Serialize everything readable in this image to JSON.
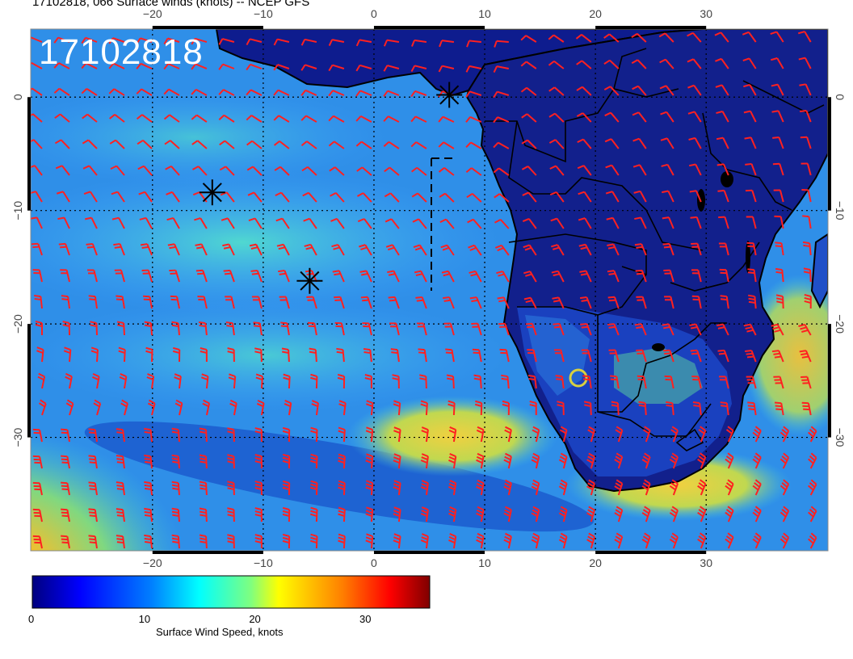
{
  "header": {
    "title": "17102818, 066 Surface winds (knots) -- NCEP GFS",
    "timestamp_stamp": "17102818"
  },
  "map": {
    "lon_range": [
      -31,
      41
    ],
    "lat_range": [
      -40,
      6
    ],
    "lon_ticks": [
      {
        "value": -20,
        "label": "−20"
      },
      {
        "value": -10,
        "label": "−10"
      },
      {
        "value": 0,
        "label": "0"
      },
      {
        "value": 10,
        "label": "10"
      },
      {
        "value": 20,
        "label": "20"
      },
      {
        "value": 30,
        "label": "30"
      }
    ],
    "lat_ticks": [
      {
        "value": 0,
        "label": "0"
      },
      {
        "value": -10,
        "label": "−10"
      },
      {
        "value": -20,
        "label": "−20"
      },
      {
        "value": -30,
        "label": "−30"
      }
    ],
    "gridlines": true,
    "markers": [
      {
        "name": "storm-marker-1",
        "lon": -14.6,
        "lat": -8.4
      },
      {
        "name": "storm-marker-2",
        "lon": -5.8,
        "lat": -16.2
      },
      {
        "name": "storm-marker-3",
        "lon": 6.8,
        "lat": 0.2
      }
    ],
    "barb_color": "#ff2020",
    "land_color": "#101a8a",
    "ocean_color": "#3f9fff"
  },
  "colorbar": {
    "label": "Surface Wind Speed, knots",
    "ticks": [
      {
        "value": 0,
        "label": "0"
      },
      {
        "value": 10,
        "label": "10"
      },
      {
        "value": 20,
        "label": "20"
      },
      {
        "value": 30,
        "label": "30"
      }
    ],
    "range": [
      0,
      36
    ],
    "colors": [
      "#00007f",
      "#0000ff",
      "#007fff",
      "#00ffff",
      "#7fff7f",
      "#ffff00",
      "#ff7f00",
      "#ff0000",
      "#7f0000"
    ]
  }
}
